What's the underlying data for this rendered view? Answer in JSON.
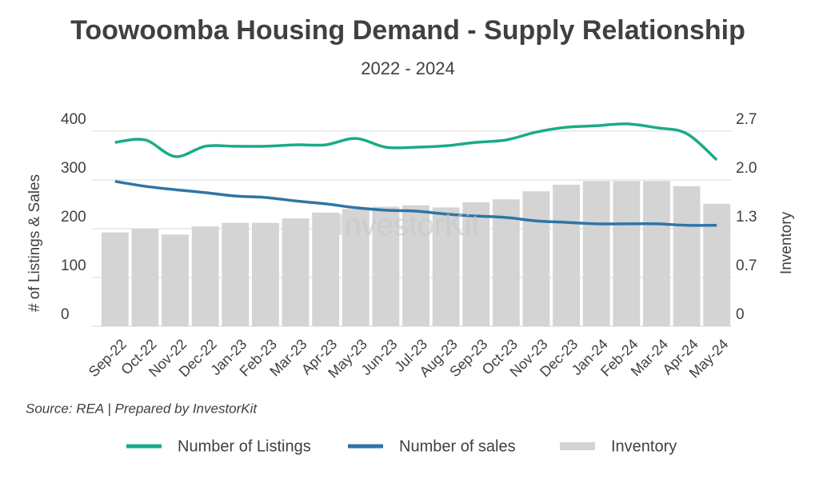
{
  "chart_data": {
    "type": "bar-line",
    "title": "Toowoomba Housing Demand - Supply Relationship",
    "subtitle": "2022 - 2024",
    "y_label": "# of Listings & Sales",
    "y2_label": "Inventory",
    "source": "Source: REA | Prepared by InvestorKit",
    "watermark": "InvestorKit",
    "categories": [
      "Sep-22",
      "Oct-22",
      "Nov-22",
      "Dec-22",
      "Jan-23",
      "Feb-23",
      "Mar-23",
      "Apr-23",
      "May-23",
      "Jun-23",
      "Jul-23",
      "Aug-23",
      "Sep-23",
      "Oct-23",
      "Nov-23",
      "Dec-23",
      "Jan-24",
      "Feb-24",
      "Mar-24",
      "Apr-24",
      "May-24"
    ],
    "ylim": [
      0,
      400
    ],
    "yticks": [
      0,
      100,
      200,
      300,
      400
    ],
    "y2lim": [
      0,
      2.66
    ],
    "y2ticks": [
      0,
      {
        "value": 0.665,
        "label": "0.7"
      },
      {
        "value": 1.33,
        "label": "1.3"
      },
      {
        "value": 1.995,
        "label": "2.0"
      },
      {
        "value": 2.66,
        "label": "2.7"
      }
    ],
    "grid": true,
    "series": [
      {
        "name": "Number of Listings",
        "type": "line",
        "color": "#1aab87",
        "values": [
          377,
          382,
          348,
          369,
          369,
          369,
          372,
          372,
          385,
          367,
          367,
          370,
          377,
          382,
          398,
          408,
          411,
          415,
          407,
          395,
          341
        ]
      },
      {
        "name": "Number of sales",
        "type": "line",
        "color": "#2e75a6",
        "values": [
          297,
          287,
          280,
          274,
          267,
          264,
          257,
          251,
          243,
          238,
          236,
          230,
          226,
          223,
          216,
          213,
          210,
          210,
          210,
          207,
          207
        ]
      },
      {
        "name": "Inventory",
        "type": "bar",
        "axis": "y2",
        "color": "#d4d4d4",
        "values": [
          1.28,
          1.33,
          1.25,
          1.36,
          1.41,
          1.41,
          1.47,
          1.55,
          1.6,
          1.63,
          1.65,
          1.62,
          1.69,
          1.73,
          1.84,
          1.93,
          1.98,
          1.98,
          1.98,
          1.91,
          1.67
        ]
      }
    ]
  }
}
